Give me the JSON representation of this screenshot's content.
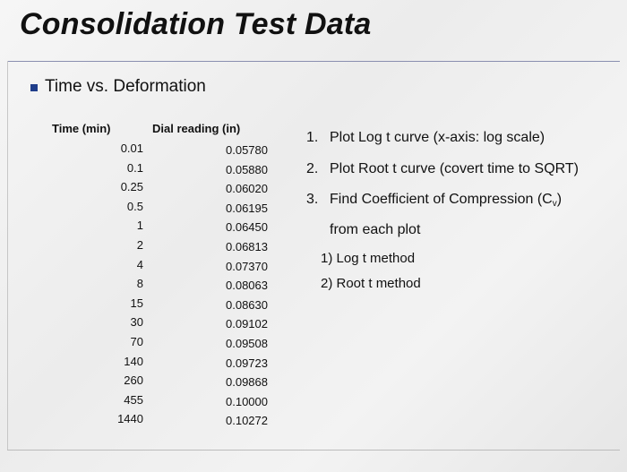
{
  "title": "Consolidation Test Data",
  "bullet": "Time vs. Deformation",
  "table": {
    "headers": {
      "time": "Time (min)",
      "dial": "Dial reading (in)"
    },
    "rows": [
      {
        "time": "0.01",
        "dial": "0.05780"
      },
      {
        "time": "0.1",
        "dial": "0.05880"
      },
      {
        "time": "0.25",
        "dial": "0.06020"
      },
      {
        "time": "0.5",
        "dial": "0.06195"
      },
      {
        "time": "1",
        "dial": "0.06450"
      },
      {
        "time": "2",
        "dial": "0.06813"
      },
      {
        "time": "4",
        "dial": "0.07370"
      },
      {
        "time": "8",
        "dial": "0.08063"
      },
      {
        "time": "15",
        "dial": "0.08630"
      },
      {
        "time": "30",
        "dial": "0.09102"
      },
      {
        "time": "70",
        "dial": "0.09508"
      },
      {
        "time": "140",
        "dial": "0.09723"
      },
      {
        "time": "260",
        "dial": "0.09868"
      },
      {
        "time": "455",
        "dial": "0.10000"
      },
      {
        "time": "1440",
        "dial": "0.10272"
      }
    ]
  },
  "steps": {
    "s1_num": "1.",
    "s1": "Plot Log t curve (x-axis: log scale)",
    "s2_num": "2.",
    "s2": "Plot Root t curve (covert time to SQRT)",
    "s3_num": "3.",
    "s3_a": "Find Coefficient of Compression (C",
    "s3_sub": "v",
    "s3_b": ")",
    "s3_line2": "from each plot",
    "sub1": "1) Log t method",
    "sub2": "2) Root t method"
  },
  "colors": {
    "bullet": "#1f3d8a",
    "title_rule": "#8a8fb0"
  }
}
